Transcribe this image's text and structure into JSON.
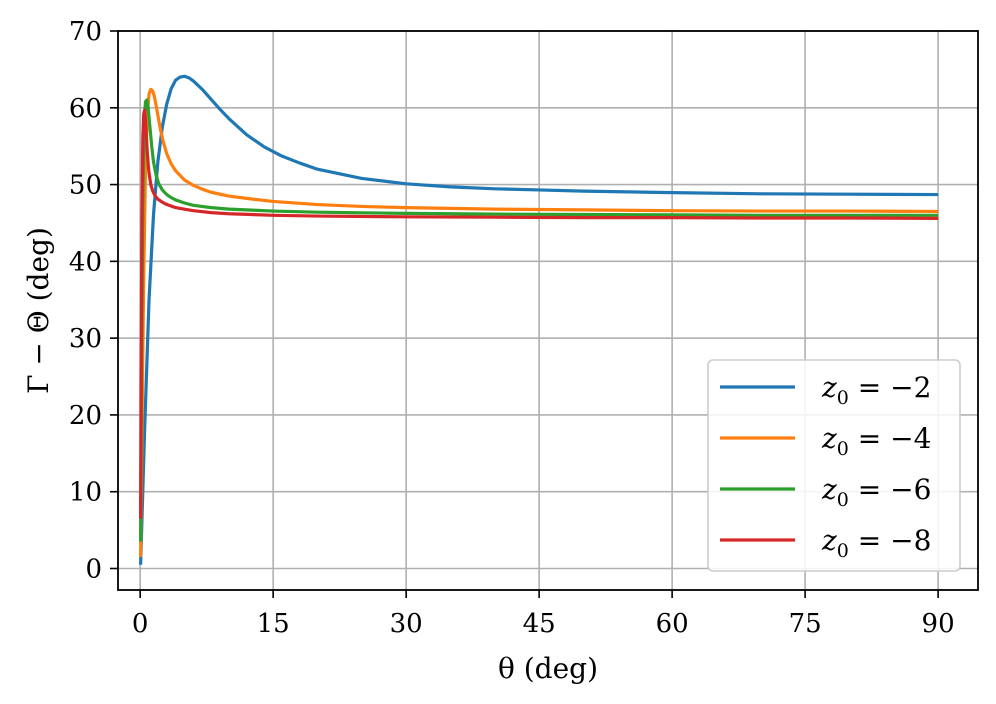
{
  "chart_data": {
    "type": "line",
    "title": "",
    "xlabel": "θ (deg)",
    "ylabel": "Γ − Θ (deg)",
    "xlim": [
      -2.5,
      94.5
    ],
    "ylim": [
      -2.8,
      70
    ],
    "xticks": [
      0,
      15,
      30,
      45,
      60,
      75,
      90
    ],
    "xtick_labels": [
      "0",
      "15",
      "30",
      "45",
      "60",
      "75",
      "90"
    ],
    "yticks": [
      0,
      10,
      20,
      30,
      40,
      50,
      60,
      70
    ],
    "ytick_labels": [
      "0",
      "10",
      "20",
      "30",
      "40",
      "50",
      "60",
      "70"
    ],
    "grid": true,
    "legend_position": "lower-right",
    "series": [
      {
        "name": "z0 = −2",
        "legend_base": "z",
        "legend_sub": "0",
        "legend_rest": " = −2",
        "color": "#1f77b4",
        "x": [
          0.05,
          0.5,
          1,
          1.5,
          2,
          2.5,
          3,
          3.5,
          4,
          4.5,
          5,
          5.5,
          6,
          7,
          8,
          9,
          10,
          12,
          14,
          16,
          18,
          20,
          25,
          30,
          35,
          40,
          45,
          50,
          60,
          70,
          80,
          90
        ],
        "y": [
          0.5,
          18,
          35,
          46,
          53,
          57.5,
          60.5,
          62.5,
          63.6,
          64.0,
          64.1,
          63.9,
          63.5,
          62.4,
          61.1,
          59.8,
          58.6,
          56.5,
          54.9,
          53.7,
          52.8,
          52.0,
          50.8,
          50.1,
          49.7,
          49.45,
          49.3,
          49.15,
          48.95,
          48.8,
          48.75,
          48.7
        ]
      },
      {
        "name": "z0 = −4",
        "legend_base": "z",
        "legend_sub": "0",
        "legend_rest": " = −4",
        "color": "#ff7f0e",
        "x": [
          0.05,
          0.2,
          0.4,
          0.6,
          0.8,
          1.0,
          1.2,
          1.4,
          1.6,
          1.8,
          2.0,
          2.3,
          2.6,
          3.0,
          3.5,
          4,
          5,
          6,
          7,
          8,
          10,
          12,
          15,
          20,
          25,
          30,
          40,
          50,
          60,
          70,
          80,
          90
        ],
        "y": [
          1.5,
          18,
          38,
          52,
          59,
          61.8,
          62.4,
          62.2,
          61.5,
          60.3,
          59.0,
          57.1,
          55.6,
          54.0,
          52.7,
          51.8,
          50.6,
          49.9,
          49.4,
          49.0,
          48.5,
          48.2,
          47.8,
          47.4,
          47.15,
          47.0,
          46.8,
          46.7,
          46.6,
          46.55,
          46.55,
          46.5
        ]
      },
      {
        "name": "z0 = −6",
        "legend_base": "z",
        "legend_sub": "0",
        "legend_rest": " = −6",
        "color": "#2ca02c",
        "x": [
          0.05,
          0.15,
          0.3,
          0.45,
          0.6,
          0.75,
          0.9,
          1.1,
          1.3,
          1.5,
          1.8,
          2.1,
          2.5,
          3,
          3.5,
          4,
          5,
          6,
          8,
          10,
          15,
          20,
          30,
          40,
          50,
          60,
          70,
          80,
          90
        ],
        "y": [
          3.5,
          25,
          48,
          58,
          60.8,
          61.0,
          60.0,
          57.5,
          55.0,
          53.0,
          51.2,
          50.1,
          49.3,
          48.7,
          48.3,
          48.0,
          47.6,
          47.3,
          47.0,
          46.8,
          46.55,
          46.4,
          46.25,
          46.15,
          46.1,
          46.05,
          46.0,
          46.0,
          46.0
        ]
      },
      {
        "name": "z0 = −8",
        "legend_base": "z",
        "legend_sub": "0",
        "legend_rest": " = −8",
        "color": "#d62728",
        "x": [
          0.05,
          0.1,
          0.2,
          0.3,
          0.4,
          0.5,
          0.6,
          0.7,
          0.8,
          0.9,
          1.0,
          1.2,
          1.4,
          1.7,
          2.0,
          2.5,
          3,
          4,
          5,
          6,
          8,
          10,
          15,
          20,
          30,
          40,
          50,
          60,
          70,
          80,
          90
        ],
        "y": [
          6.5,
          25,
          46,
          56,
          59.2,
          59.7,
          58.3,
          56.3,
          54.3,
          52.7,
          51.5,
          50.0,
          49.2,
          48.5,
          48.1,
          47.7,
          47.4,
          47.0,
          46.8,
          46.6,
          46.35,
          46.2,
          46.0,
          45.9,
          45.8,
          45.75,
          45.7,
          45.7,
          45.65,
          45.65,
          45.6
        ]
      }
    ]
  }
}
